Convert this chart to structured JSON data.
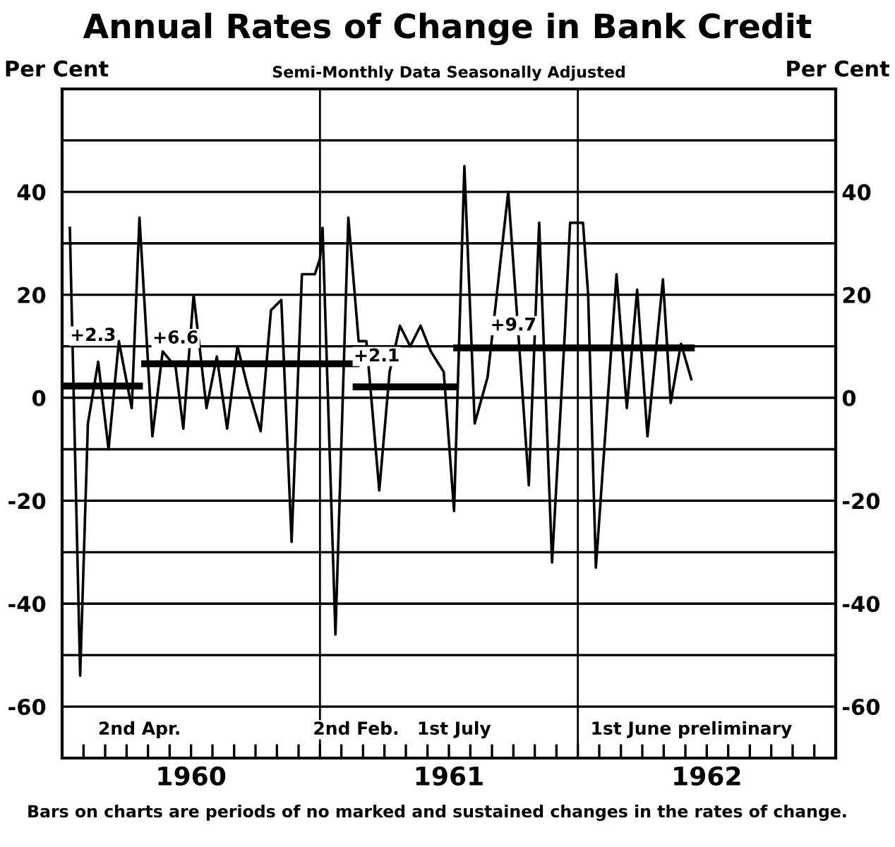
{
  "chart_data": {
    "type": "line",
    "title": "Annual Rates of Change in Bank Credit",
    "subtitle": "Semi-Monthly Data Seasonally Adjusted",
    "ylabel": "Per Cent",
    "y2label": "Per Cent",
    "xlim": [
      1960.0,
      1963.0
    ],
    "ylim": [
      -70,
      60
    ],
    "y2lim": [
      -70,
      60
    ],
    "xticks": [
      {
        "value": 1960.083,
        "label": null
      },
      {
        "value": 1960.167,
        "label": null
      },
      {
        "value": 1960.25,
        "label": null
      },
      {
        "value": 1960.333,
        "label": null
      },
      {
        "value": 1960.417,
        "label": null
      },
      {
        "value": 1960.5,
        "label": "1960"
      },
      {
        "value": 1960.583,
        "label": null
      },
      {
        "value": 1960.667,
        "label": null
      },
      {
        "value": 1960.75,
        "label": null
      },
      {
        "value": 1960.833,
        "label": null
      },
      {
        "value": 1960.917,
        "label": null
      },
      {
        "value": 1961.0,
        "label": null
      },
      {
        "value": 1961.083,
        "label": null
      },
      {
        "value": 1961.167,
        "label": null
      },
      {
        "value": 1961.25,
        "label": null
      },
      {
        "value": 1961.333,
        "label": null
      },
      {
        "value": 1961.417,
        "label": null
      },
      {
        "value": 1961.5,
        "label": "1961"
      },
      {
        "value": 1961.583,
        "label": null
      },
      {
        "value": 1961.667,
        "label": null
      },
      {
        "value": 1961.75,
        "label": null
      },
      {
        "value": 1961.833,
        "label": null
      },
      {
        "value": 1961.917,
        "label": null
      },
      {
        "value": 1962.0,
        "label": null
      },
      {
        "value": 1962.083,
        "label": null
      },
      {
        "value": 1962.167,
        "label": null
      },
      {
        "value": 1962.25,
        "label": null
      },
      {
        "value": 1962.333,
        "label": null
      },
      {
        "value": 1962.417,
        "label": null
      },
      {
        "value": 1962.5,
        "label": "1962"
      },
      {
        "value": 1962.583,
        "label": null
      },
      {
        "value": 1962.667,
        "label": null
      },
      {
        "value": 1962.75,
        "label": null
      },
      {
        "value": 1962.833,
        "label": null
      },
      {
        "value": 1962.917,
        "label": null
      }
    ],
    "yticks": [
      {
        "value": -60,
        "label": "-60"
      },
      {
        "value": -50,
        "label": null
      },
      {
        "value": -40,
        "label": "-40"
      },
      {
        "value": -30,
        "label": null
      },
      {
        "value": -20,
        "label": "-20"
      },
      {
        "value": -10,
        "label": null
      },
      0,
      {
        "value": 10,
        "label": null
      },
      20,
      {
        "value": 30,
        "label": null
      },
      40,
      {
        "value": 50,
        "label": null
      }
    ],
    "y2ticks": [
      {
        "value": -60,
        "label": "-60"
      },
      {
        "value": -40,
        "label": "-40"
      },
      {
        "value": -20,
        "label": "-20"
      },
      0,
      20,
      40
    ],
    "grid": "y",
    "series": [
      {
        "color": "#000000",
        "x": [
          1960.03,
          1960.07,
          1960.1,
          1960.14,
          1960.18,
          1960.22,
          1960.27,
          1960.3,
          1960.35,
          1960.39,
          1960.44,
          1960.47,
          1960.51,
          1960.56,
          1960.6,
          1960.64,
          1960.68,
          1960.72,
          1960.77,
          1960.81,
          1960.85,
          1960.89,
          1960.93,
          1960.98,
          1961.0,
          1961.01,
          1961.06,
          1961.11,
          1961.15,
          1961.18,
          1961.23,
          1961.27,
          1961.31,
          1961.35,
          1961.39,
          1961.43,
          1961.48,
          1961.52,
          1961.56,
          1961.6,
          1961.65,
          1961.69,
          1961.73,
          1961.77,
          1961.81,
          1961.85,
          1961.9,
          1961.95,
          1961.97,
          1962.02,
          1962.04,
          1962.07,
          1962.15,
          1962.19,
          1962.23,
          1962.27,
          1962.33,
          1962.36,
          1962.4,
          1962.44
        ],
        "values": [
          33,
          -54,
          -5,
          7,
          -10,
          11,
          -2,
          35,
          -7.5,
          9,
          6,
          -6,
          20,
          -2,
          8,
          -6,
          10,
          2,
          -6.5,
          17,
          19,
          -28,
          24,
          24,
          27,
          33,
          -46,
          35,
          11,
          11,
          -18,
          5,
          14,
          10,
          14,
          9,
          5,
          -22,
          45,
          -5,
          4,
          22,
          40,
          12,
          -17,
          34,
          -32,
          13,
          34,
          34,
          20,
          -33,
          24,
          -2,
          21,
          -7.5,
          23,
          -1,
          10.5,
          3.6
        ]
      },
      {
        "color": "#000000",
        "x": [
          1960.0,
          1960.3
        ],
        "values": [
          2.3,
          2.3
        ]
      },
      {
        "color": "#000000",
        "x": [
          1960.32,
          1961.14
        ],
        "values": [
          6.6,
          6.6
        ]
      },
      {
        "color": "#000000",
        "x": [
          1961.14,
          1961.52
        ],
        "values": [
          2.1,
          2.1
        ]
      },
      {
        "color": "#000000",
        "x": [
          1961.53,
          1962.44
        ],
        "values": [
          9.7,
          9.7
        ]
      }
    ],
    "ref_lines": [
      {
        "axis": "x",
        "value": 1961.0,
        "color": "#000000"
      },
      {
        "axis": "x",
        "value": 1962.0,
        "color": "#000000"
      }
    ],
    "annotations": [
      {
        "text": "+2.3",
        "x": 1960.12,
        "y": 12
      },
      {
        "text": "+6.6",
        "x": 1960.44,
        "y": 11.5
      },
      {
        "text": "+2.1",
        "x": 1961.22,
        "y": 8
      },
      {
        "text": "+9.7",
        "x": 1961.75,
        "y": 14
      },
      "2nd Apr.",
      "2nd Feb.",
      "1st July",
      "1st June preliminary",
      "Bars on charts are periods of no marked and sustained changes in the rates of change."
    ]
  }
}
